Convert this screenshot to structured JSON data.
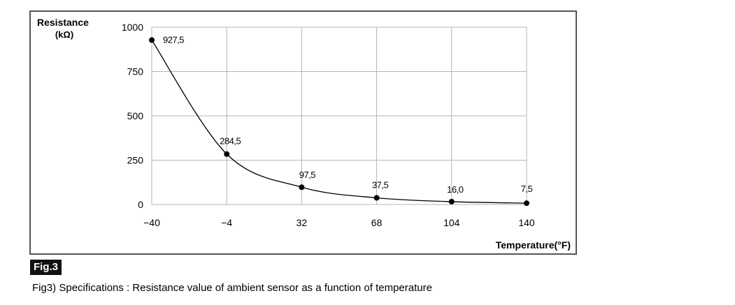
{
  "chart_data": {
    "type": "line",
    "ylabel": "Resistance",
    "yunit": "(kΩ)",
    "xlabel": "Temperature(°F)",
    "x": [
      -40,
      -4,
      32,
      68,
      104,
      140
    ],
    "tick_labels_x": [
      "−40",
      "−4",
      "32",
      "68",
      "104",
      "140"
    ],
    "yticks": [
      0,
      250,
      500,
      750,
      1000
    ],
    "values": [
      927.5,
      284.5,
      97.5,
      37.5,
      16.0,
      7.5
    ],
    "data_labels": [
      "927,5",
      "284,5",
      "97,5",
      "37,5",
      "16,0",
      "7,5"
    ],
    "xlim": [
      -40,
      140
    ],
    "ylim": [
      0,
      1000
    ],
    "grid": true,
    "line_color": "#000000",
    "grid_color": "#b5b5b5"
  },
  "figure": {
    "badge": "Fig.3",
    "caption": "Fig3) Specifications : Resistance value of ambient sensor as a function of temperature"
  }
}
